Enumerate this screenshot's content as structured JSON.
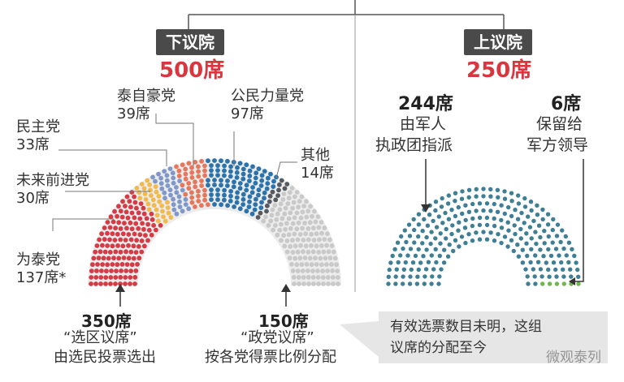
{
  "lower_house": {
    "title": "下议院",
    "total": "500席",
    "parties": [
      {
        "name": "为泰党",
        "seats_text": "137席*",
        "seats": 137,
        "color": "#d63a45"
      },
      {
        "name": "未来前进党",
        "seats_text": "30席",
        "seats": 30,
        "color": "#f2b94d"
      },
      {
        "name": "民主党",
        "seats_text": "33席",
        "seats": 33,
        "color": "#7f98c9"
      },
      {
        "name": "泰自豪党",
        "seats_text": "39席",
        "seats": 39,
        "color": "#e7775c"
      },
      {
        "name": "公民力量党",
        "seats_text": "97席",
        "seats": 97,
        "color": "#2a73ad"
      },
      {
        "name": "其他",
        "seats_text": "14席",
        "seats": 14,
        "color": "#555a60"
      },
      {
        "name": "",
        "seats_text": "",
        "seats": 150,
        "color": "#c9c9c9"
      }
    ],
    "constituency": {
      "seats": "350席",
      "name": "“选区议席”",
      "desc": "由选民投票选出"
    },
    "party_list": {
      "seats": "150席",
      "name": "“政党议席”",
      "desc": "按各党得票比例分配"
    },
    "note": [
      "有效选票数目未明，这组",
      "议席的分配至今"
    ]
  },
  "upper_house": {
    "title": "上议院",
    "total": "250席",
    "groups": [
      {
        "seats_text": "244席",
        "desc1": "由军人",
        "desc2": "执政团指派",
        "seats": 244,
        "color": "#3f7f96"
      },
      {
        "seats_text": "6席",
        "desc1": "保留给",
        "desc2": "军方领导",
        "seats": 6,
        "color": "#6fb84a"
      }
    ]
  },
  "watermark": "微观泰列",
  "colors": {
    "accent_red": "#d9373f",
    "label_bg": "#4a4a4a",
    "line": "#555555"
  }
}
